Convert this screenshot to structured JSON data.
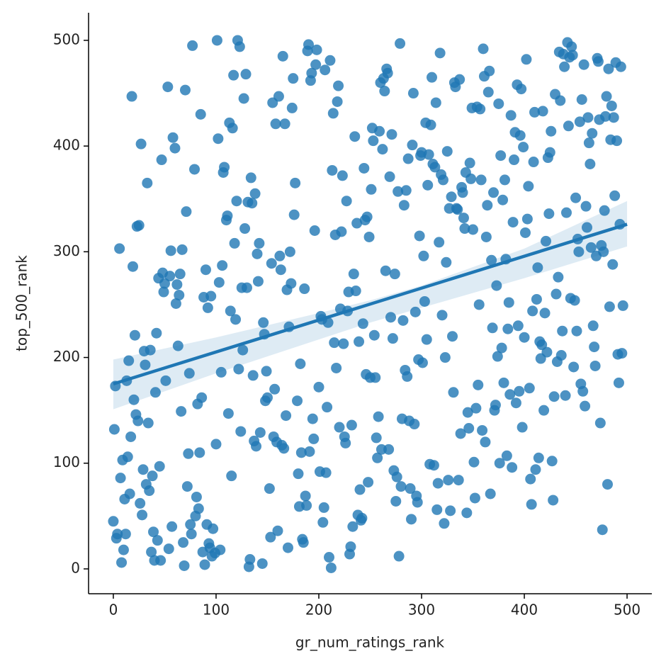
{
  "chart_data": {
    "type": "scatter",
    "x_label": "gr_num_ratings_rank",
    "y_label": "top_500_rank",
    "color": "#1f77b4",
    "xlim": [
      -24.1,
      524.1
    ],
    "ylim": [
      -23.5,
      526.1
    ],
    "xticks": [
      0,
      100,
      200,
      300,
      400,
      500
    ],
    "yticks": [
      0,
      100,
      200,
      300,
      400,
      500
    ],
    "grid": false,
    "x": [
      0,
      1,
      2,
      3,
      4,
      6,
      7,
      8,
      9,
      10,
      11,
      12,
      13,
      14,
      15,
      16,
      17,
      18,
      19,
      20,
      21,
      22,
      23,
      24,
      25,
      26,
      27,
      28,
      29,
      30,
      31,
      32,
      33,
      34,
      35,
      36,
      37,
      38,
      39,
      40,
      41,
      42,
      43,
      44,
      45,
      46,
      47,
      48,
      49,
      50,
      51,
      53,
      54,
      55,
      56,
      57,
      58,
      60,
      61,
      62,
      63,
      64,
      65,
      66,
      67,
      68,
      69,
      70,
      71,
      72,
      73,
      74,
      75,
      76,
      77,
      79,
      80,
      81,
      82,
      83,
      84,
      85,
      86,
      87,
      88,
      89,
      90,
      91,
      92,
      93,
      94,
      95,
      96,
      97,
      99,
      100,
      101,
      102,
      103,
      104,
      105,
      106,
      107,
      108,
      110,
      111,
      112,
      113,
      114,
      115,
      116,
      117,
      118,
      119,
      120,
      121,
      122,
      123,
      124,
      125,
      126,
      127,
      128,
      129,
      130,
      131,
      132,
      133,
      134,
      135,
      136,
      137,
      138,
      139,
      140,
      141,
      142,
      143,
      145,
      146,
      147,
      148,
      149,
      150,
      152,
      153,
      154,
      155,
      156,
      157,
      158,
      159,
      160,
      161,
      162,
      163,
      164,
      165,
      166,
      167,
      168,
      169,
      170,
      171,
      172,
      173,
      174,
      175,
      176,
      177,
      179,
      180,
      181,
      182,
      183,
      184,
      185,
      186,
      187,
      188,
      189,
      190,
      191,
      192,
      193,
      194,
      195,
      196,
      197,
      198,
      200,
      201,
      202,
      203,
      204,
      205,
      206,
      207,
      208,
      209,
      210,
      211,
      212,
      213,
      214,
      215,
      216,
      217,
      218,
      219,
      220,
      221,
      222,
      223,
      224,
      225,
      226,
      227,
      228,
      229,
      230,
      231,
      232,
      233,
      234,
      235,
      236,
      237,
      238,
      239,
      240,
      241,
      242,
      243,
      244,
      245,
      246,
      247,
      248,
      249,
      250,
      251,
      252,
      253,
      254,
      255,
      256,
      257,
      258,
      259,
      260,
      261,
      262,
      263,
      264,
      265,
      266,
      267,
      268,
      269,
      270,
      271,
      272,
      273,
      274,
      275,
      276,
      277,
      278,
      279,
      280,
      281,
      282,
      283,
      284,
      285,
      286,
      287,
      288,
      289,
      290,
      291,
      292,
      293,
      294,
      295,
      296,
      297,
      298,
      299,
      300,
      301,
      302,
      303,
      304,
      305,
      306,
      307,
      308,
      309,
      310,
      311,
      312,
      313,
      314,
      315,
      316,
      317,
      318,
      319,
      320,
      321,
      322,
      323,
      324,
      325,
      326,
      327,
      328,
      329,
      330,
      331,
      332,
      333,
      334,
      335,
      336,
      337,
      338,
      339,
      340,
      341,
      342,
      343,
      344,
      345,
      346,
      347,
      348,
      349,
      350,
      351,
      352,
      353,
      354,
      355,
      356,
      357,
      358,
      359,
      360,
      361,
      362,
      363,
      364,
      365,
      366,
      367,
      368,
      369,
      370,
      371,
      372,
      373,
      374,
      375,
      376,
      377,
      378,
      379,
      380,
      381,
      382,
      383,
      384,
      385,
      386,
      387,
      388,
      389,
      390,
      391,
      392,
      393,
      394,
      395,
      396,
      397,
      398,
      399,
      400,
      401,
      402,
      403,
      404,
      405,
      406,
      407,
      408,
      409,
      410,
      411,
      412,
      413,
      414,
      415,
      416,
      417,
      418,
      419,
      420,
      421,
      422,
      423,
      424,
      425,
      426,
      427,
      428,
      429,
      430,
      431,
      432,
      433,
      434,
      435,
      436,
      437,
      438,
      439,
      440,
      441,
      442,
      443,
      444,
      445,
      446,
      447,
      448,
      449,
      450,
      451,
      452,
      453,
      454,
      455,
      456,
      457,
      458,
      459,
      460,
      461,
      462,
      463,
      464,
      465,
      466,
      467,
      468,
      469,
      470,
      471,
      472,
      473,
      474,
      475,
      476,
      477,
      478,
      479,
      480,
      481,
      482,
      483,
      484,
      485,
      486,
      487,
      488,
      489,
      490,
      491,
      492,
      493,
      494,
      495,
      496
    ],
    "values": [
      45,
      132,
      173,
      29,
      33,
      303,
      86,
      6,
      103,
      18,
      66,
      33,
      178,
      106,
      197,
      71,
      125,
      447,
      286,
      160,
      221,
      146,
      324,
      140,
      325,
      62,
      402,
      51,
      94,
      206,
      193,
      80,
      365,
      138,
      74,
      207,
      16,
      88,
      35,
      8,
      167,
      223,
      27,
      275,
      97,
      8,
      387,
      280,
      262,
      270,
      178,
      456,
      19,
      277,
      301,
      40,
      408,
      398,
      251,
      269,
      211,
      259,
      279,
      149,
      302,
      25,
      3,
      453,
      338,
      78,
      109,
      185,
      42,
      33,
      495,
      378,
      50,
      68,
      156,
      57,
      110,
      430,
      162,
      16,
      257,
      4,
      283,
      42,
      247,
      24,
      20,
      258,
      12,
      38,
      15,
      118,
      500,
      407,
      271,
      18,
      186,
      287,
      375,
      380,
      330,
      334,
      147,
      422,
      244,
      88,
      417,
      467,
      308,
      236,
      348,
      500,
      189,
      494,
      130,
      266,
      207,
      445,
      322,
      468,
      266,
      347,
      2,
      9,
      370,
      346,
      183,
      121,
      355,
      116,
      298,
      272,
      308,
      129,
      5,
      233,
      222,
      159,
      187,
      162,
      76,
      30,
      289,
      441,
      125,
      170,
      421,
      120,
      36,
      447,
      296,
      283,
      117,
      485,
      114,
      421,
      145,
      264,
      20,
      229,
      300,
      270,
      436,
      464,
      335,
      365,
      159,
      90,
      59,
      194,
      110,
      28,
      25,
      265,
      69,
      60,
      490,
      496,
      111,
      462,
      469,
      142,
      123,
      320,
      477,
      491,
      172,
      92,
      239,
      236,
      44,
      58,
      472,
      91,
      153,
      233,
      11,
      481,
      1,
      377,
      431,
      214,
      316,
      190,
      442,
      457,
      134,
      246,
      319,
      372,
      213,
      125,
      119,
      348,
      244,
      262,
      14,
      21,
      136,
      40,
      279,
      409,
      263,
      327,
      51,
      215,
      75,
      46,
      48,
      232,
      379,
      330,
      184,
      333,
      82,
      314,
      181,
      359,
      417,
      405,
      221,
      181,
      124,
      105,
      144,
      414,
      460,
      113,
      397,
      464,
      452,
      282,
      473,
      469,
      113,
      371,
      238,
      411,
      218,
      93,
      279,
      64,
      87,
      357,
      12,
      497,
      78,
      142,
      235,
      344,
      188,
      358,
      182,
      388,
      140,
      76,
      47,
      401,
      450,
      137,
      243,
      69,
      63,
      198,
      315,
      391,
      394,
      195,
      296,
      253,
      422,
      217,
      363,
      392,
      99,
      420,
      465,
      383,
      98,
      380,
      441,
      56,
      81,
      309,
      488,
      373,
      240,
      368,
      43,
      200,
      290,
      395,
      84,
      341,
      55,
      352,
      220,
      167,
      460,
      456,
      341,
      340,
      84,
      463,
      128,
      361,
      356,
      332,
      322,
      375,
      53,
      148,
      133,
      384,
      369,
      436,
      321,
      101,
      67,
      152,
      437,
      174,
      250,
      435,
      368,
      131,
      492,
      466,
      120,
      314,
      344,
      451,
      471,
      71,
      292,
      228,
      356,
      150,
      155,
      268,
      201,
      440,
      100,
      391,
      209,
      349,
      176,
      368,
      293,
      107,
      227,
      252,
      165,
      429,
      96,
      328,
      387,
      413,
      157,
      458,
      230,
      168,
      410,
      454,
      134,
      399,
      219,
      318,
      482,
      331,
      362,
      171,
      85,
      61,
      244,
      385,
      432,
      94,
      255,
      285,
      105,
      215,
      199,
      212,
      433,
      150,
      242,
      310,
      205,
      389,
      336,
      394,
      414,
      102,
      65,
      163,
      449,
      260,
      196,
      276,
      489,
      443,
      202,
      225,
      487,
      475,
      164,
      337,
      498,
      419,
      484,
      256,
      494,
      486,
      191,
      254,
      351,
      225,
      312,
      300,
      423,
      175,
      444,
      168,
      477,
      154,
      343,
      323,
      427,
      403,
      383,
      304,
      412,
      230,
      210,
      192,
      296,
      483,
      480,
      425,
      138,
      306,
      37,
      300,
      339,
      428,
      447,
      80,
      473,
      248,
      406,
      438,
      288,
      427,
      353,
      479,
      405,
      203,
      176,
      326,
      475,
      204,
      249
    ],
    "regression": {
      "color": "#1f77b4",
      "x": [
        0,
        500
      ],
      "y": [
        175,
        326
      ],
      "ci_x": [
        0,
        100,
        200,
        250,
        300,
        400,
        500
      ],
      "ci_lower": [
        151,
        185,
        217,
        233,
        247,
        275,
        305
      ],
      "ci_upper": [
        198,
        219,
        242,
        254,
        268,
        303,
        348
      ]
    }
  }
}
